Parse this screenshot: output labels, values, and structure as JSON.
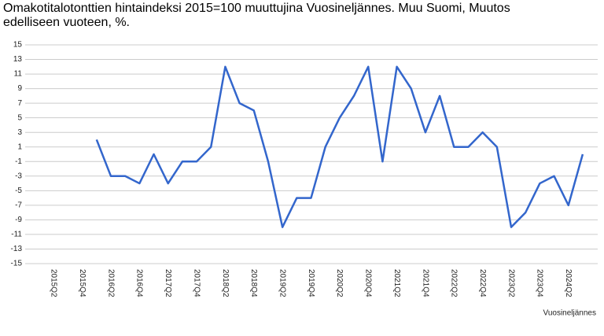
{
  "chart_data": {
    "type": "line",
    "title": "Omakotitalotonttien hintaindeksi 2015=100 muuttujina Vuosineljännes. Muu Suomi, Muutos edelliseen vuoteen, %.",
    "x_label": "Vuosineljännes",
    "categories": [
      null,
      "2015Q2",
      null,
      "2015Q4",
      null,
      "2016Q2",
      null,
      "2016Q4",
      null,
      "2017Q2",
      null,
      "2017Q4",
      null,
      "2018Q2",
      null,
      "2018Q4",
      null,
      "2019Q2",
      null,
      "2019Q4",
      null,
      "2020Q2",
      null,
      "2020Q4",
      null,
      "2021Q2",
      null,
      "2021Q4",
      null,
      "2022Q2",
      null,
      "2022Q4",
      null,
      "2023Q2",
      null,
      "2023Q4",
      null,
      "2024Q2",
      null
    ],
    "series": [
      {
        "name": "Muu Suomi",
        "color": "#3366cc",
        "values": [
          null,
          null,
          null,
          null,
          2,
          -3,
          -3,
          -4,
          0,
          -4,
          -1,
          -1,
          1,
          12,
          7,
          6,
          -1,
          -10,
          -6,
          -6,
          1,
          5,
          8,
          12,
          -1,
          12,
          9,
          3,
          8,
          1,
          1,
          3,
          1,
          -10,
          -8,
          -4,
          -3,
          -7,
          0
        ]
      }
    ],
    "ylim": [
      -15,
      15
    ],
    "yticks": [
      15,
      13,
      11,
      9,
      7,
      5,
      3,
      1,
      -1,
      -3,
      -5,
      -7,
      -9,
      -11,
      -13,
      -15
    ],
    "grid": true
  }
}
